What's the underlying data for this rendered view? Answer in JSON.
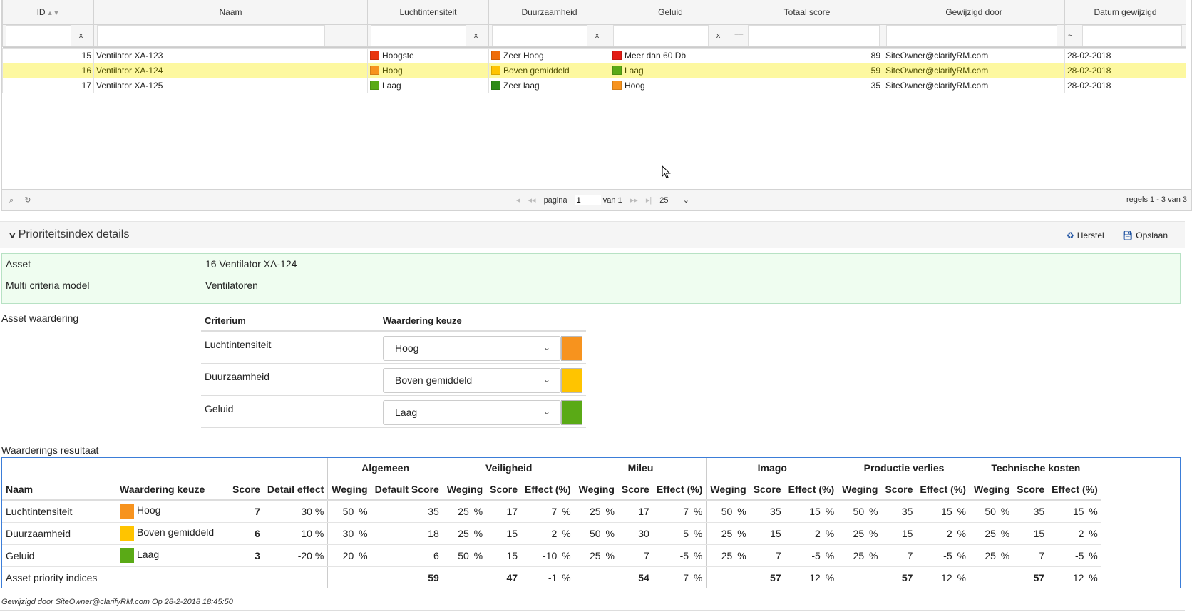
{
  "grid": {
    "columns": [
      "ID",
      "Naam",
      "Luchtintensiteit",
      "Duurzaamheid",
      "Geluid",
      "Totaal score",
      "Gewijzigd door",
      "Datum gewijzigd"
    ],
    "filter_clear": "x",
    "filter_op_score": "==",
    "filter_op_date": "~",
    "rows": [
      {
        "id": "15",
        "naam": "Ventilator XA-123",
        "lucht": "Hoogste",
        "lucht_color": "#e8360e",
        "duur": "Zeer Hoog",
        "duur_color": "#ef6d0a",
        "geluid": "Meer dan 60 Db",
        "geluid_color": "#e31d16",
        "score": "89",
        "door": "SiteOwner@clarifyRM.com",
        "datum": "28-02-2018"
      },
      {
        "id": "16",
        "naam": "Ventilator XA-124",
        "lucht": "Hoog",
        "lucht_color": "#f7931e",
        "duur": "Boven gemiddeld",
        "duur_color": "#ffc400",
        "geluid": "Laag",
        "geluid_color": "#5aaa16",
        "score": "59",
        "door": "SiteOwner@clarifyRM.com",
        "datum": "28-02-2018"
      },
      {
        "id": "17",
        "naam": "Ventilator XA-125",
        "lucht": "Laag",
        "lucht_color": "#5aaa16",
        "duur": "Zeer laag",
        "duur_color": "#2e8b18",
        "geluid": "Hoog",
        "geluid_color": "#f7931e",
        "score": "35",
        "door": "SiteOwner@clarifyRM.com",
        "datum": "28-02-2018"
      }
    ],
    "selected_index": 1
  },
  "pager": {
    "page_label": "pagina",
    "page_value": "1",
    "of_label": "van 1",
    "page_size": "25",
    "records": "regels 1 - 3 van 3"
  },
  "panel": {
    "title": "Prioriteitsindex details",
    "reset_label": "Herstel",
    "save_label": "Opslaan"
  },
  "info": {
    "asset_label": "Asset",
    "asset_value": "16 Ventilator XA-124",
    "model_label": "Multi criteria model",
    "model_value": "Ventilatoren"
  },
  "asset_waardering": {
    "label": "Asset waardering",
    "col_criterium": "Criterium",
    "col_keuze": "Waardering keuze",
    "rows": [
      {
        "name": "Luchtintensiteit",
        "value": "Hoog",
        "color": "#f7931e"
      },
      {
        "name": "Duurzaamheid",
        "value": "Boven gemiddeld",
        "color": "#ffc400"
      },
      {
        "name": "Geluid",
        "value": "Laag",
        "color": "#5aaa16"
      }
    ]
  },
  "resultaat": {
    "label": "Waarderings resultaat",
    "groups": [
      "Algemeen",
      "Veiligheid",
      "Mileu",
      "Imago",
      "Productie verlies",
      "Technische kosten"
    ],
    "headers": {
      "naam": "Naam",
      "keuze": "Waardering keuze",
      "score": "Score",
      "detail": "Detail effect",
      "weging": "Weging",
      "default_score": "Default Score",
      "score_col": "Score",
      "effect": "Effect (%)"
    },
    "rows": [
      {
        "naam": "Luchtintensiteit",
        "keuze": "Hoog",
        "color": "#f7931e",
        "score": "7",
        "detail": "30 %",
        "alg": {
          "w": "50",
          "s": "35"
        },
        "cats": [
          {
            "w": "25",
            "s": "17",
            "e": "7"
          },
          {
            "w": "25",
            "s": "17",
            "e": "7"
          },
          {
            "w": "50",
            "s": "35",
            "e": "15"
          },
          {
            "w": "50",
            "s": "35",
            "e": "15"
          },
          {
            "w": "50",
            "s": "35",
            "e": "15"
          }
        ]
      },
      {
        "naam": "Duurzaamheid",
        "keuze": "Boven gemiddeld",
        "color": "#ffc400",
        "score": "6",
        "detail": "10 %",
        "alg": {
          "w": "30",
          "s": "18"
        },
        "cats": [
          {
            "w": "25",
            "s": "15",
            "e": "2"
          },
          {
            "w": "50",
            "s": "30",
            "e": "5"
          },
          {
            "w": "25",
            "s": "15",
            "e": "2"
          },
          {
            "w": "25",
            "s": "15",
            "e": "2"
          },
          {
            "w": "25",
            "s": "15",
            "e": "2"
          }
        ]
      },
      {
        "naam": "Geluid",
        "keuze": "Laag",
        "color": "#5aaa16",
        "score": "3",
        "detail": "-20 %",
        "alg": {
          "w": "20",
          "s": "6"
        },
        "cats": [
          {
            "w": "50",
            "s": "15",
            "e": "-10"
          },
          {
            "w": "25",
            "s": "7",
            "e": "-5"
          },
          {
            "w": "25",
            "s": "7",
            "e": "-5"
          },
          {
            "w": "25",
            "s": "7",
            "e": "-5"
          },
          {
            "w": "25",
            "s": "7",
            "e": "-5"
          }
        ]
      }
    ],
    "totals": {
      "label": "Asset priority indices",
      "alg": "59",
      "cats": [
        {
          "s": "47",
          "e": "-1"
        },
        {
          "s": "54",
          "e": "7"
        },
        {
          "s": "57",
          "e": "12"
        },
        {
          "s": "57",
          "e": "12"
        },
        {
          "s": "57",
          "e": "12"
        }
      ]
    },
    "pct": "%"
  },
  "footer": "Gewijzigd door SiteOwner@clarifyRM.com Op 28-2-2018 18:45:50"
}
